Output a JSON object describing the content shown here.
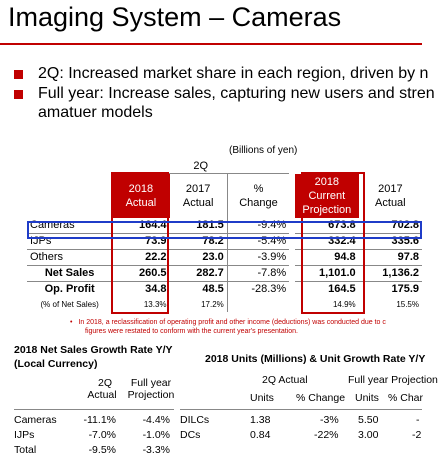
{
  "title": "Imaging System – Cameras",
  "bullets": [
    "2Q: Increased market share in each region, driven by n",
    "Full year: Increase sales, capturing new users and stren",
    "amatuer models"
  ],
  "unit_note": "(Billions of yen)",
  "main_table": {
    "q_header": "2Q",
    "col_2018_actual": [
      "2018",
      "Actual"
    ],
    "col_2017_actual": [
      "2017",
      "Actual"
    ],
    "col_change": [
      "%",
      "Change"
    ],
    "col_2018_proj": [
      "2018",
      "Current",
      "Projection"
    ],
    "col_2017_full": [
      "2017",
      "Actual"
    ],
    "rows": [
      {
        "label": "Cameras",
        "a2018": "164.4",
        "a2017": "181.5",
        "chg": "-9.4%",
        "p2018": "673.8",
        "f2017": "702.8"
      },
      {
        "label": "IJPs",
        "a2018": "73.9",
        "a2017": "78.2",
        "chg": "-5.4%",
        "p2018": "332.4",
        "f2017": "335.6"
      },
      {
        "label": "Others",
        "a2018": "22.2",
        "a2017": "23.0",
        "chg": "-3.9%",
        "p2018": "94.8",
        "f2017": "97.8"
      },
      {
        "label": "Net Sales",
        "a2018": "260.5",
        "a2017": "282.7",
        "chg": "-7.8%",
        "p2018": "1,101.0",
        "f2017": "1,136.2"
      },
      {
        "label": "Op. Profit",
        "a2018": "34.8",
        "a2017": "48.5",
        "chg": "-28.3%",
        "p2018": "164.5",
        "f2017": "175.9"
      },
      {
        "label": "(% of Net Sales)",
        "a2018": "13.3%",
        "a2017": "17.2%",
        "chg": "",
        "p2018": "14.9%",
        "f2017": "15.5%"
      }
    ]
  },
  "footnote": [
    "In 2018, a reclassification of operating profit and other income (deductions) was conducted due to c",
    "figures were restated to conform with the current year's presentation."
  ],
  "growth": {
    "title": "2018 Net Sales Growth Rate Y/Y",
    "subtitle": "(Local Currency)",
    "col_q": [
      "2Q",
      "Actual"
    ],
    "col_fy": [
      "Full year",
      "Projection"
    ],
    "rows": [
      {
        "label": "Cameras",
        "q": "-11.1%",
        "fy": "-4.4%"
      },
      {
        "label": "IJPs",
        "q": "-7.0%",
        "fy": "-1.0%"
      },
      {
        "label": "Total",
        "q": "-9.5%",
        "fy": "-3.3%"
      }
    ]
  },
  "units": {
    "title": "2018 Units (Millions) & Unit Growth Rate Y/Y",
    "q_header": "2Q Actual",
    "fy_header": "Full year Projection",
    "sub_units": "Units",
    "sub_change": "% Change",
    "sub_units2": "Units",
    "sub_change2": "% Char",
    "rows": [
      {
        "label": "DILCs",
        "u": "1.38",
        "c": "-3%",
        "u2": "5.50",
        "c2": "-"
      },
      {
        "label": "DCs",
        "u": "0.84",
        "c": "-22%",
        "u2": "3.00",
        "c2": "-2"
      }
    ]
  }
}
